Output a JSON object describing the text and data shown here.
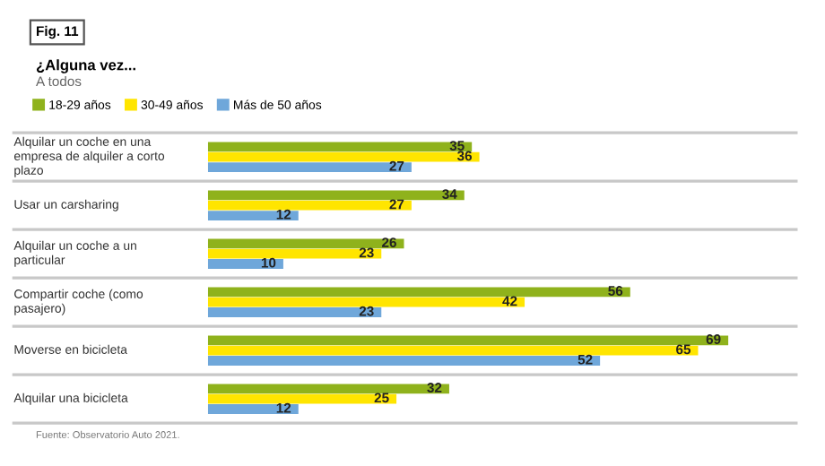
{
  "chart_data": {
    "type": "bar",
    "orientation": "horizontal",
    "title": "¿Alguna vez...",
    "subtitle": "A todos",
    "annotations": [
      "Fig. 11",
      "Fuente: Observatorio Auto 2021."
    ],
    "categories": [
      "Alquilar un coche en una empresa de alquiler a corto plazo",
      "Usar un carsharing",
      "Alquilar un coche a un particular",
      "Compartir coche (como pasajero)",
      "Moverse en bicicleta",
      "Alquilar una bicicleta"
    ],
    "series": [
      {
        "name": "18-29 años",
        "color": "#8fb21c",
        "values": [
          35,
          34,
          26,
          56,
          69,
          32
        ]
      },
      {
        "name": "30-49 años",
        "color": "#ffe500",
        "values": [
          36,
          27,
          23,
          42,
          65,
          25
        ]
      },
      {
        "name": "Más de 50 años",
        "color": "#6fa7da",
        "values": [
          27,
          12,
          10,
          23,
          52,
          12
        ]
      }
    ],
    "xlim": [
      0,
      78
    ],
    "data_labels": true,
    "legend": "top left"
  }
}
